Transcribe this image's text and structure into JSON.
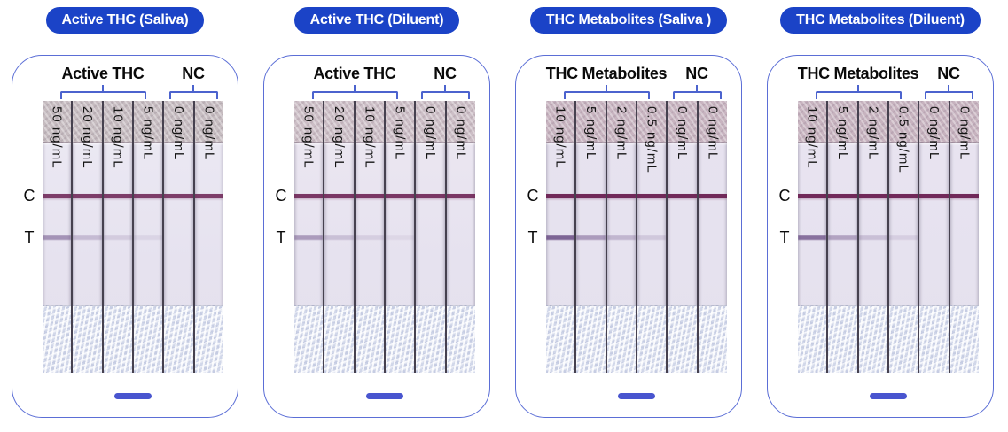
{
  "figure": {
    "colors": {
      "badge_blue": "#1b43c7",
      "panel_border_blue": "#5b6ed6",
      "bracket_blue": "#4c63ce",
      "scale_bar_blue": "#4955cf",
      "control_line": "#6b2052",
      "test_line": "#64467f"
    },
    "line_labels": {
      "control": "C",
      "test": "T"
    },
    "panels": [
      {
        "title": "Active THC (Saliva)",
        "group_label": "Active THC",
        "nc_label": "NC",
        "pad_color": "#c6bcc0",
        "membrane_color": "#eceaf4",
        "strips": [
          {
            "concentration": "50 ng/mL",
            "group": "Active THC",
            "control_line_intensity": 0.85,
            "test_line_intensity": 0.5
          },
          {
            "concentration": "20 ng/mL",
            "group": "Active THC",
            "control_line_intensity": 0.85,
            "test_line_intensity": 0.25
          },
          {
            "concentration": "10 ng/mL",
            "group": "Active THC",
            "control_line_intensity": 0.85,
            "test_line_intensity": 0.15
          },
          {
            "concentration": "5 ng/mL",
            "group": "Active THC",
            "control_line_intensity": 0.85,
            "test_line_intensity": 0.09
          },
          {
            "concentration": "0 ng/mL",
            "group": "NC",
            "control_line_intensity": 0.85,
            "test_line_intensity": 0
          },
          {
            "concentration": "0 ng/mL",
            "group": "NC",
            "control_line_intensity": 0.85,
            "test_line_intensity": 0
          }
        ]
      },
      {
        "title": "Active THC (Diluent)",
        "group_label": "Active THC",
        "nc_label": "NC",
        "pad_color": "#ccbec6",
        "membrane_color": "#ece7f1",
        "strips": [
          {
            "concentration": "50 ng/mL",
            "group": "Active THC",
            "control_line_intensity": 0.88,
            "test_line_intensity": 0.45
          },
          {
            "concentration": "20 ng/mL",
            "group": "Active THC",
            "control_line_intensity": 0.88,
            "test_line_intensity": 0.22
          },
          {
            "concentration": "10 ng/mL",
            "group": "Active THC",
            "control_line_intensity": 0.88,
            "test_line_intensity": 0.13
          },
          {
            "concentration": "5 ng/mL",
            "group": "Active THC",
            "control_line_intensity": 0.88,
            "test_line_intensity": 0.07
          },
          {
            "concentration": "0 ng/mL",
            "group": "NC",
            "control_line_intensity": 0.88,
            "test_line_intensity": 0
          },
          {
            "concentration": "0 ng/mL",
            "group": "NC",
            "control_line_intensity": 0.88,
            "test_line_intensity": 0
          }
        ]
      },
      {
        "title": "THC Metabolites (Saliva )",
        "group_label": "THC Metabolites",
        "nc_label": "NC",
        "pad_color": "#c8b4c0",
        "membrane_color": "#e7e2ef",
        "strips": [
          {
            "concentration": "10 ng/mL",
            "group": "THC Metabolites",
            "control_line_intensity": 0.95,
            "test_line_intensity": 0.8
          },
          {
            "concentration": "5 ng/mL",
            "group": "THC Metabolites",
            "control_line_intensity": 0.95,
            "test_line_intensity": 0.45
          },
          {
            "concentration": "2 ng/mL",
            "group": "THC Metabolites",
            "control_line_intensity": 0.95,
            "test_line_intensity": 0.28
          },
          {
            "concentration": "0.5 ng/mL",
            "group": "THC Metabolites",
            "control_line_intensity": 0.95,
            "test_line_intensity": 0.16
          },
          {
            "concentration": "0 ng/mL",
            "group": "NC",
            "control_line_intensity": 0.95,
            "test_line_intensity": 0
          },
          {
            "concentration": "0 ng/mL",
            "group": "NC",
            "control_line_intensity": 0.95,
            "test_line_intensity": 0
          }
        ]
      },
      {
        "title": "THC Metabolites (Diluent)",
        "group_label": "THC Metabolites",
        "nc_label": "NC",
        "pad_color": "#c7b3bf",
        "membrane_color": "#e9e4f1",
        "strips": [
          {
            "concentration": "10 ng/mL",
            "group": "THC Metabolites",
            "control_line_intensity": 0.95,
            "test_line_intensity": 0.72
          },
          {
            "concentration": "5 ng/mL",
            "group": "THC Metabolites",
            "control_line_intensity": 0.95,
            "test_line_intensity": 0.4
          },
          {
            "concentration": "2 ng/mL",
            "group": "THC Metabolites",
            "control_line_intensity": 0.95,
            "test_line_intensity": 0.22
          },
          {
            "concentration": "0.5 ng/mL",
            "group": "THC Metabolites",
            "control_line_intensity": 0.95,
            "test_line_intensity": 0.12
          },
          {
            "concentration": "0 ng/mL",
            "group": "NC",
            "control_line_intensity": 0.95,
            "test_line_intensity": 0
          },
          {
            "concentration": "0 ng/mL",
            "group": "NC",
            "control_line_intensity": 0.95,
            "test_line_intensity": 0
          }
        ]
      }
    ]
  }
}
